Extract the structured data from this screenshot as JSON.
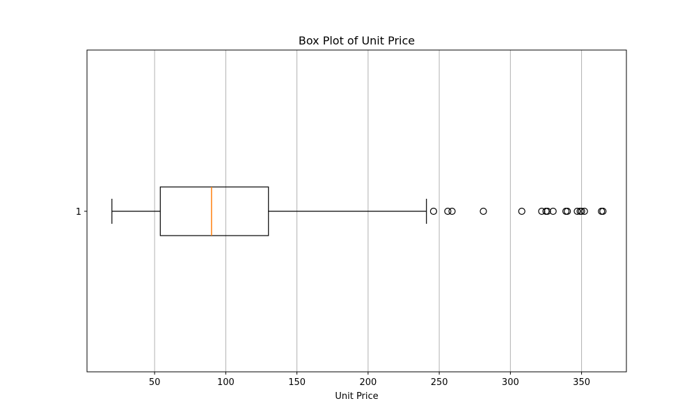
{
  "chart_data": {
    "type": "boxplot",
    "orientation": "horizontal",
    "title": "Box Plot of Unit Price",
    "xlabel": "Unit Price",
    "ylabel": "",
    "xlim": [
      2.5,
      381.5
    ],
    "xticks": [
      50,
      100,
      150,
      200,
      250,
      300,
      350
    ],
    "categories": [
      "1"
    ],
    "grid": "x",
    "boxes": [
      {
        "label": "1",
        "whisker_low": 20,
        "q1": 54,
        "median": 90,
        "q3": 130,
        "whisker_high": 241,
        "outliers": [
          246,
          256,
          259,
          281,
          308,
          322,
          325,
          326,
          330,
          339,
          340,
          347,
          349,
          350,
          352,
          364,
          365
        ]
      }
    ],
    "colors": {
      "median": "#ff7f0e",
      "box": "#000000",
      "grid": "#b0b0b0"
    }
  }
}
